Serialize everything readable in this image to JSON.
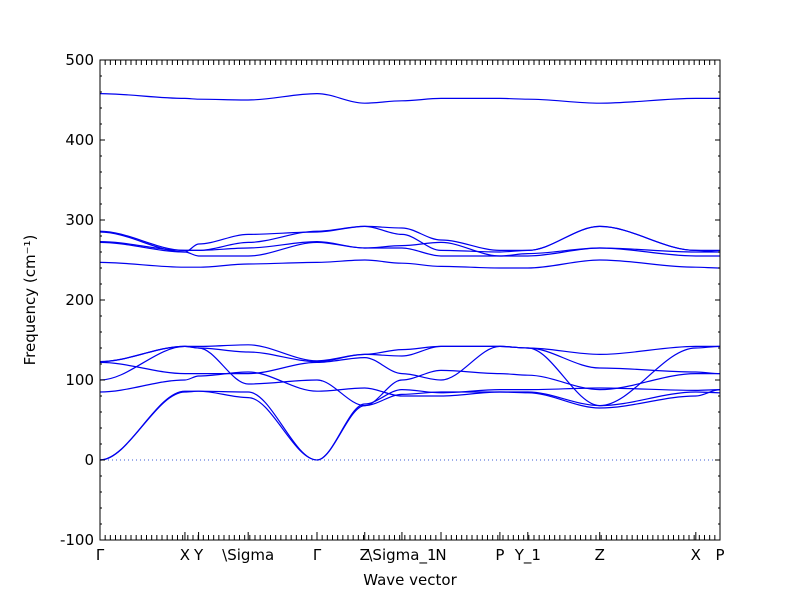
{
  "chart_data": {
    "type": "line",
    "title": "",
    "xlabel": "Wave vector",
    "ylabel": "Frequency (cm⁻¹)",
    "ylim": [
      -100,
      500
    ],
    "yticks": [
      -100,
      0,
      100,
      200,
      300,
      400,
      500
    ],
    "xlim": [
      0,
      1
    ],
    "grid": false,
    "legend": "none",
    "line_color": "#0000ee",
    "zero_line_color": "#3b5bd6",
    "high_symmetry_points": [
      {
        "label": "Γ",
        "x": 0.0
      },
      {
        "label": "X",
        "x": 0.137
      },
      {
        "label": "Y",
        "x": 0.159
      },
      {
        "label": "\\Sigma",
        "x": 0.239
      },
      {
        "label": "Γ",
        "x": 0.35
      },
      {
        "label": "Z",
        "x": 0.427
      },
      {
        "label": "\\Sigma_1",
        "x": 0.487
      },
      {
        "label": "N",
        "x": 0.55
      },
      {
        "label": "P",
        "x": 0.645
      },
      {
        "label": "Y_1",
        "x": 0.69
      },
      {
        "label": "Z",
        "x": 0.806
      },
      {
        "label": "X",
        "x": 0.961
      },
      {
        "label": "P",
        "x": 1.0
      }
    ],
    "series": [
      {
        "x": [
          0,
          0.137,
          0.159,
          0.239,
          0.35,
          0.427,
          0.487,
          0.55,
          0.645,
          0.69,
          0.806,
          0.961,
          1.0
        ],
        "y": [
          0,
          85,
          86,
          78,
          0,
          68,
          82,
          85,
          85,
          85,
          68,
          85,
          84
        ]
      },
      {
        "x": [
          0,
          0.137,
          0.159,
          0.239,
          0.35,
          0.427,
          0.487,
          0.55,
          0.645,
          0.69,
          0.806,
          0.961,
          1.0
        ],
        "y": [
          0,
          86,
          86,
          85,
          0,
          70,
          88,
          84,
          88,
          88,
          90,
          87,
          88
        ]
      },
      {
        "x": [
          0,
          0.137,
          0.159,
          0.239,
          0.35,
          0.427,
          0.487,
          0.55,
          0.645,
          0.69,
          0.806,
          0.961,
          1.0
        ],
        "y": [
          85,
          100,
          105,
          110,
          86,
          90,
          80,
          80,
          85,
          84,
          65,
          80,
          88
        ]
      },
      {
        "x": [
          0,
          0.137,
          0.159,
          0.239,
          0.35,
          0.427,
          0.487,
          0.55,
          0.645,
          0.69,
          0.806,
          0.961,
          1.0
        ],
        "y": [
          100,
          142,
          140,
          95,
          100,
          68,
          100,
          112,
          108,
          106,
          88,
          108,
          108
        ]
      },
      {
        "x": [
          0,
          0.137,
          0.159,
          0.239,
          0.35,
          0.427,
          0.487,
          0.55,
          0.645,
          0.69,
          0.806,
          0.961,
          1.0
        ],
        "y": [
          122,
          108,
          108,
          108,
          122,
          128,
          108,
          100,
          142,
          140,
          68,
          140,
          142
        ]
      },
      {
        "x": [
          0,
          0.137,
          0.159,
          0.239,
          0.35,
          0.427,
          0.487,
          0.55,
          0.645,
          0.69,
          0.806,
          0.961,
          1.0
        ],
        "y": [
          123,
          142,
          140,
          135,
          123,
          132,
          130,
          142,
          142,
          140,
          115,
          110,
          108
        ]
      },
      {
        "x": [
          0,
          0.137,
          0.159,
          0.239,
          0.35,
          0.427,
          0.487,
          0.55,
          0.645,
          0.69,
          0.806,
          0.961,
          1.0
        ],
        "y": [
          123,
          142,
          142,
          144,
          124,
          132,
          138,
          142,
          142,
          140,
          132,
          142,
          142
        ]
      },
      {
        "x": [
          0,
          0.137,
          0.159,
          0.239,
          0.35,
          0.427,
          0.487,
          0.55,
          0.645,
          0.69,
          0.806,
          0.961,
          1.0
        ],
        "y": [
          247,
          241,
          241,
          245,
          247,
          250,
          246,
          242,
          240,
          240,
          250,
          241,
          240
        ]
      },
      {
        "x": [
          0,
          0.137,
          0.159,
          0.239,
          0.35,
          0.427,
          0.487,
          0.55,
          0.645,
          0.69,
          0.806,
          0.961,
          1.0
        ],
        "y": [
          272,
          260,
          255,
          255,
          272,
          265,
          265,
          255,
          255,
          255,
          265,
          255,
          255
        ]
      },
      {
        "x": [
          0,
          0.137,
          0.159,
          0.239,
          0.35,
          0.427,
          0.487,
          0.55,
          0.645,
          0.69,
          0.806,
          0.961,
          1.0
        ],
        "y": [
          273,
          262,
          262,
          265,
          273,
          265,
          268,
          272,
          255,
          258,
          265,
          260,
          260
        ]
      },
      {
        "x": [
          0,
          0.137,
          0.159,
          0.239,
          0.35,
          0.427,
          0.487,
          0.55,
          0.645,
          0.69,
          0.806,
          0.961,
          1.0
        ],
        "y": [
          285,
          260,
          270,
          282,
          285,
          292,
          282,
          262,
          260,
          262,
          292,
          262,
          260
        ]
      },
      {
        "x": [
          0,
          0.137,
          0.159,
          0.239,
          0.35,
          0.427,
          0.487,
          0.55,
          0.645,
          0.69,
          0.806,
          0.961,
          1.0
        ],
        "y": [
          286,
          262,
          262,
          272,
          286,
          292,
          290,
          275,
          262,
          262,
          292,
          262,
          262
        ]
      },
      {
        "x": [
          0,
          0.137,
          0.159,
          0.239,
          0.35,
          0.427,
          0.487,
          0.55,
          0.645,
          0.69,
          0.806,
          0.961,
          1.0
        ],
        "y": [
          458,
          452,
          451,
          450,
          458,
          446,
          449,
          452,
          452,
          451,
          446,
          452,
          452
        ]
      }
    ]
  }
}
